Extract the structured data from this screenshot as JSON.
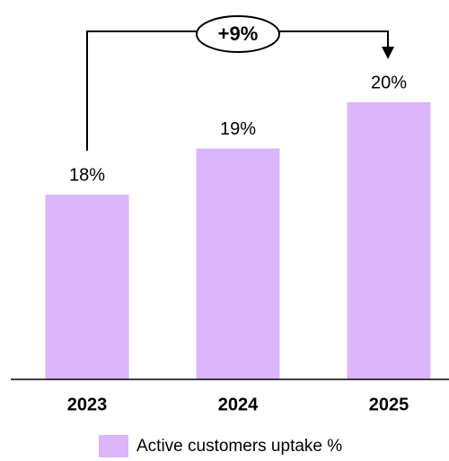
{
  "chart_data": {
    "type": "bar",
    "categories": [
      "2023",
      "2024",
      "2025"
    ],
    "series": [
      {
        "name": "Active customers uptake %",
        "color": "#dcb5fb",
        "values": [
          18,
          19,
          20
        ],
        "value_labels": [
          "18%",
          "19%",
          "20%"
        ]
      }
    ],
    "ylim": [
      14,
      22
    ],
    "annotations": [
      "+9%"
    ]
  }
}
